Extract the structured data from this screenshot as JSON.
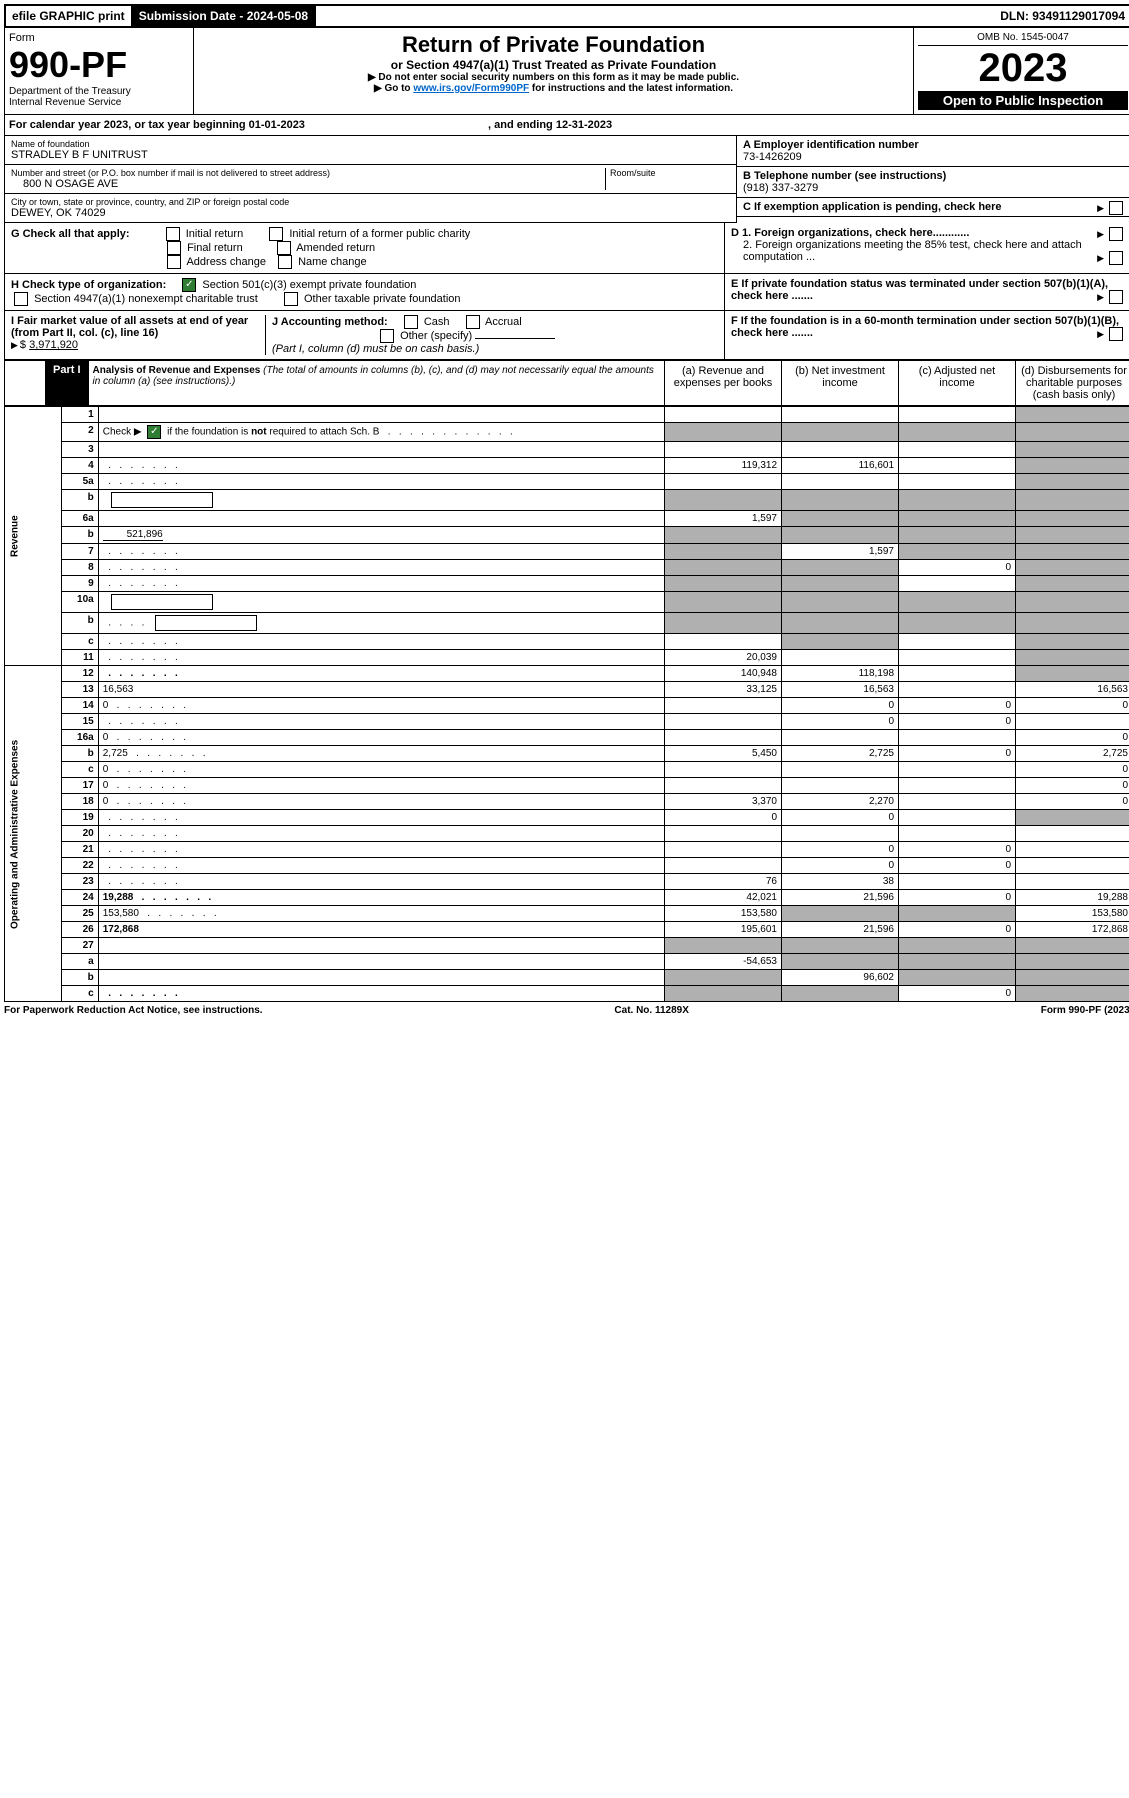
{
  "topbar": {
    "efile": "efile GRAPHIC print",
    "subdate_label": "Submission Date - ",
    "subdate": "2024-05-08",
    "dln_label": "DLN: ",
    "dln": "93491129017094"
  },
  "header": {
    "form_word": "Form",
    "form_no": "990-PF",
    "dept": "Department of the Treasury",
    "irs": "Internal Revenue Service",
    "title": "Return of Private Foundation",
    "subtitle": "or Section 4947(a)(1) Trust Treated as Private Foundation",
    "note1": "Do not enter social security numbers on this form as it may be made public.",
    "note2_pre": "Go to ",
    "note2_link": "www.irs.gov/Form990PF",
    "note2_post": " for instructions and the latest information.",
    "omb": "OMB No. 1545-0047",
    "year": "2023",
    "open": "Open to Public Inspection"
  },
  "calyear": {
    "text_a": "For calendar year 2023, or tax year beginning ",
    "begin": "01-01-2023",
    "text_b": ", and ending ",
    "end": "12-31-2023"
  },
  "foundation": {
    "name_label": "Name of foundation",
    "name": "STRADLEY B F UNITRUST",
    "addr_label": "Number and street (or P.O. box number if mail is not delivered to street address)",
    "addr": "800 N OSAGE AVE",
    "room_label": "Room/suite",
    "city_label": "City or town, state or province, country, and ZIP or foreign postal code",
    "city": "DEWEY, OK  74029",
    "ein_label": "A Employer identification number",
    "ein": "73-1426209",
    "tel_label": "B Telephone number (see instructions)",
    "tel": "(918) 337-3279",
    "c_label": "C If exemption application is pending, check here",
    "d1": "D 1. Foreign organizations, check here............",
    "d2": "2. Foreign organizations meeting the 85% test, check here and attach computation ...",
    "e": "E  If private foundation status was terminated under section 507(b)(1)(A), check here .......",
    "f": "F  If the foundation is in a 60-month termination under section 507(b)(1)(B), check here .......",
    "g_label": "G Check all that apply:",
    "g_opts": [
      "Initial return",
      "Initial return of a former public charity",
      "Final return",
      "Amended return",
      "Address change",
      "Name change"
    ],
    "h_label": "H Check type of organization:",
    "h1": "Section 501(c)(3) exempt private foundation",
    "h2": "Section 4947(a)(1) nonexempt charitable trust",
    "h3": "Other taxable private foundation",
    "i_label": "I Fair market value of all assets at end of year (from Part II, col. (c), line 16)",
    "i_val": "3,971,920",
    "j_label": "J Accounting method:",
    "j_cash": "Cash",
    "j_accrual": "Accrual",
    "j_other": "Other (specify)",
    "j_note": "(Part I, column (d) must be on cash basis.)"
  },
  "part1": {
    "label": "Part I",
    "title": "Analysis of Revenue and Expenses",
    "note": "(The total of amounts in columns (b), (c), and (d) may not necessarily equal the amounts in column (a) (see instructions).)",
    "cols": {
      "a": "(a)  Revenue and expenses per books",
      "b": "(b)  Net investment income",
      "c": "(c)  Adjusted net income",
      "d": "(d)  Disbursements for charitable purposes (cash basis only)"
    }
  },
  "side": {
    "rev": "Revenue",
    "exp": "Operating and Administrative Expenses"
  },
  "rows": [
    {
      "n": "1",
      "d": "",
      "a": "",
      "b": "",
      "c": "",
      "shade_d": true,
      "shade_c": false
    },
    {
      "n": "2",
      "d": "",
      "a": "",
      "b": "",
      "c": "",
      "shade_a": true,
      "shade_b": true,
      "shade_c": true,
      "shade_d": true,
      "checkline": true
    },
    {
      "n": "3",
      "d": "",
      "a": "",
      "b": "",
      "c": "",
      "shade_d": true
    },
    {
      "n": "4",
      "d": "",
      "a": "119,312",
      "b": "116,601",
      "c": "",
      "shade_d": true,
      "dots": true
    },
    {
      "n": "5a",
      "d": "",
      "a": "",
      "b": "",
      "c": "",
      "shade_d": true,
      "dots": true
    },
    {
      "n": "b",
      "d": "",
      "a": "",
      "b": "",
      "c": "",
      "shade_a": true,
      "shade_b": true,
      "shade_c": true,
      "shade_d": true,
      "inline_blank": true
    },
    {
      "n": "6a",
      "d": "",
      "a": "1,597",
      "b": "",
      "c": "",
      "shade_b": true,
      "shade_c": true,
      "shade_d": true
    },
    {
      "n": "b",
      "d": "",
      "a": "",
      "b": "",
      "c": "",
      "shade_a": true,
      "shade_b": true,
      "shade_c": true,
      "shade_d": true,
      "inline_val": "521,896"
    },
    {
      "n": "7",
      "d": "",
      "a": "",
      "b": "1,597",
      "c": "",
      "shade_a": true,
      "shade_c": true,
      "shade_d": true,
      "dots": true
    },
    {
      "n": "8",
      "d": "",
      "a": "",
      "b": "",
      "c": "0",
      "shade_a": true,
      "shade_b": true,
      "shade_d": true,
      "dots": true
    },
    {
      "n": "9",
      "d": "",
      "a": "",
      "b": "",
      "c": "",
      "shade_a": true,
      "shade_b": true,
      "shade_d": true,
      "dots": true
    },
    {
      "n": "10a",
      "d": "",
      "a": "",
      "b": "",
      "c": "",
      "shade_a": true,
      "shade_b": true,
      "shade_c": true,
      "shade_d": true,
      "inline_blank": true
    },
    {
      "n": "b",
      "d": "",
      "a": "",
      "b": "",
      "c": "",
      "shade_a": true,
      "shade_b": true,
      "shade_c": true,
      "shade_d": true,
      "inline_blank": true,
      "dots": true
    },
    {
      "n": "c",
      "d": "",
      "a": "",
      "b": "",
      "c": "",
      "shade_b": true,
      "shade_d": true,
      "dots": true
    },
    {
      "n": "11",
      "d": "",
      "a": "20,039",
      "b": "",
      "c": "",
      "shade_d": true,
      "dots": true
    },
    {
      "n": "12",
      "d": "",
      "a": "140,948",
      "b": "118,198",
      "c": "",
      "bold": true,
      "shade_d": true,
      "dots": true
    },
    {
      "n": "13",
      "d": "16,563",
      "a": "33,125",
      "b": "16,563",
      "c": ""
    },
    {
      "n": "14",
      "d": "0",
      "a": "",
      "b": "0",
      "c": "0",
      "dots": true
    },
    {
      "n": "15",
      "d": "",
      "a": "",
      "b": "0",
      "c": "0",
      "dots": true
    },
    {
      "n": "16a",
      "d": "0",
      "a": "",
      "b": "",
      "c": "",
      "dots": true
    },
    {
      "n": "b",
      "d": "2,725",
      "a": "5,450",
      "b": "2,725",
      "c": "0",
      "dots": true
    },
    {
      "n": "c",
      "d": "0",
      "a": "",
      "b": "",
      "c": "",
      "dots": true
    },
    {
      "n": "17",
      "d": "0",
      "a": "",
      "b": "",
      "c": "",
      "dots": true
    },
    {
      "n": "18",
      "d": "0",
      "a": "3,370",
      "b": "2,270",
      "c": "",
      "dots": true
    },
    {
      "n": "19",
      "d": "",
      "a": "0",
      "b": "0",
      "c": "",
      "shade_d": true,
      "dots": true
    },
    {
      "n": "20",
      "d": "",
      "a": "",
      "b": "",
      "c": "",
      "dots": true
    },
    {
      "n": "21",
      "d": "",
      "a": "",
      "b": "0",
      "c": "0",
      "dots": true
    },
    {
      "n": "22",
      "d": "",
      "a": "",
      "b": "0",
      "c": "0",
      "dots": true
    },
    {
      "n": "23",
      "d": "",
      "a": "76",
      "b": "38",
      "c": "",
      "dots": true
    },
    {
      "n": "24",
      "d": "19,288",
      "a": "42,021",
      "b": "21,596",
      "c": "0",
      "bold": true,
      "dots": true
    },
    {
      "n": "25",
      "d": "153,580",
      "a": "153,580",
      "b": "",
      "c": "",
      "shade_b": true,
      "shade_c": true,
      "dots": true
    },
    {
      "n": "26",
      "d": "172,868",
      "a": "195,601",
      "b": "21,596",
      "c": "0",
      "bold": true
    },
    {
      "n": "27",
      "d": "",
      "a": "",
      "b": "",
      "c": "",
      "shade_a": true,
      "shade_b": true,
      "shade_c": true,
      "shade_d": true
    },
    {
      "n": "a",
      "d": "",
      "a": "-54,653",
      "b": "",
      "c": "",
      "bold": true,
      "shade_b": true,
      "shade_c": true,
      "shade_d": true
    },
    {
      "n": "b",
      "d": "",
      "a": "",
      "b": "96,602",
      "c": "",
      "bold": true,
      "shade_a": true,
      "shade_c": true,
      "shade_d": true
    },
    {
      "n": "c",
      "d": "",
      "a": "",
      "b": "",
      "c": "0",
      "bold": true,
      "shade_a": true,
      "shade_b": true,
      "shade_d": true,
      "dots": true
    }
  ],
  "footer": {
    "left": "For Paperwork Reduction Act Notice, see instructions.",
    "center": "Cat. No. 11289X",
    "right": "Form 990-PF (2023)"
  }
}
